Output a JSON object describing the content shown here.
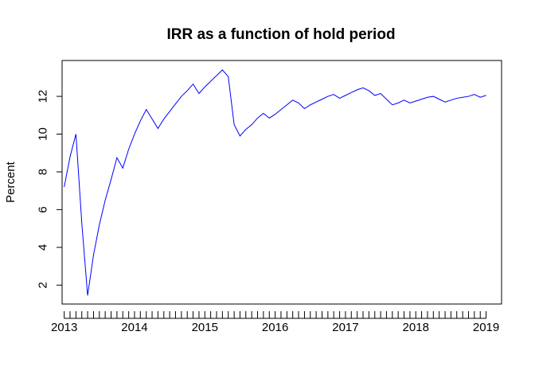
{
  "chart_data": {
    "type": "line",
    "title": "IRR as a function of hold period",
    "xlabel": "",
    "ylabel": "Percent",
    "x_tick_labels": [
      "2013",
      "2014",
      "2015",
      "2016",
      "2017",
      "2018",
      "2019"
    ],
    "y_ticks": [
      2,
      4,
      6,
      8,
      10,
      12
    ],
    "xlim": [
      2012.97,
      2019.22
    ],
    "ylim": [
      1.0,
      13.9
    ],
    "grid": false,
    "legend": "none",
    "series_color": "#0000ff",
    "series": [
      {
        "x": [
          2013.0,
          2013.083,
          2013.167,
          2013.25,
          2013.333,
          2013.417,
          2013.5,
          2013.583,
          2013.667,
          2013.75,
          2013.833,
          2013.917,
          2014.0,
          2014.083,
          2014.167,
          2014.25,
          2014.333,
          2014.417,
          2014.5,
          2014.583,
          2014.667,
          2014.75,
          2014.833,
          2014.917,
          2015.0,
          2015.083,
          2015.167,
          2015.25,
          2015.333,
          2015.417,
          2015.5,
          2015.583,
          2015.667,
          2015.75,
          2015.833,
          2015.917,
          2016.0,
          2016.083,
          2016.167,
          2016.25,
          2016.333,
          2016.417,
          2016.5,
          2016.583,
          2016.667,
          2016.75,
          2016.833,
          2016.917,
          2017.0,
          2017.083,
          2017.167,
          2017.25,
          2017.333,
          2017.417,
          2017.5,
          2017.583,
          2017.667,
          2017.75,
          2017.833,
          2017.917,
          2018.0,
          2018.083,
          2018.167,
          2018.25,
          2018.333,
          2018.417,
          2018.5,
          2018.583,
          2018.667,
          2018.75,
          2018.833,
          2018.917,
          2019.0
        ],
        "y": [
          7.2,
          8.8,
          10.0,
          5.3,
          1.45,
          3.6,
          5.2,
          6.5,
          7.6,
          8.75,
          8.2,
          9.2,
          10.0,
          10.7,
          11.3,
          10.8,
          10.3,
          10.8,
          11.2,
          11.6,
          12.0,
          12.3,
          12.65,
          12.15,
          12.5,
          12.8,
          13.1,
          13.4,
          13.05,
          10.5,
          9.9,
          10.25,
          10.5,
          10.85,
          11.1,
          10.85,
          11.05,
          11.3,
          11.55,
          11.8,
          11.65,
          11.35,
          11.55,
          11.7,
          11.85,
          12.0,
          12.1,
          11.9,
          12.05,
          12.2,
          12.35,
          12.45,
          12.3,
          12.05,
          12.15,
          11.85,
          11.55,
          11.65,
          11.8,
          11.65,
          11.75,
          11.85,
          11.95,
          12.0,
          11.85,
          11.7,
          11.8,
          11.9,
          11.95,
          12.0,
          12.1,
          11.95,
          12.05
        ]
      }
    ]
  }
}
